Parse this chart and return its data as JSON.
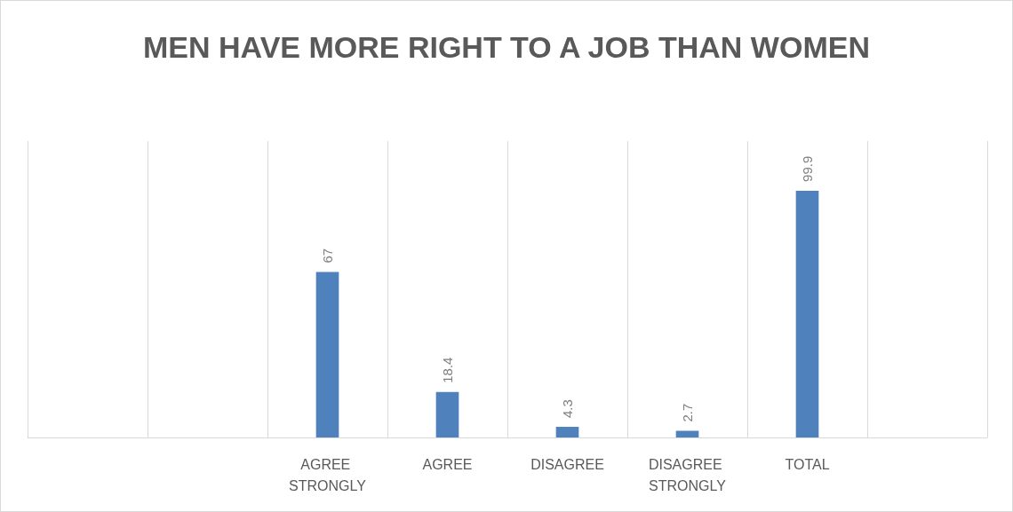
{
  "chart_data": {
    "type": "bar",
    "title": "MEN HAVE MORE RIGHT TO A JOB THAN WOMEN",
    "categories": [
      null,
      null,
      "AGREE STRONGLY",
      "AGREE",
      "DISAGREE",
      "DISAGREE STRONGLY",
      "TOTAL",
      null
    ],
    "values": [
      null,
      null,
      67,
      18.4,
      4.3,
      2.7,
      99.9,
      null
    ],
    "color": "#4f81bd",
    "ylim": [
      0,
      120
    ],
    "grid": "x",
    "data_labels": true
  }
}
